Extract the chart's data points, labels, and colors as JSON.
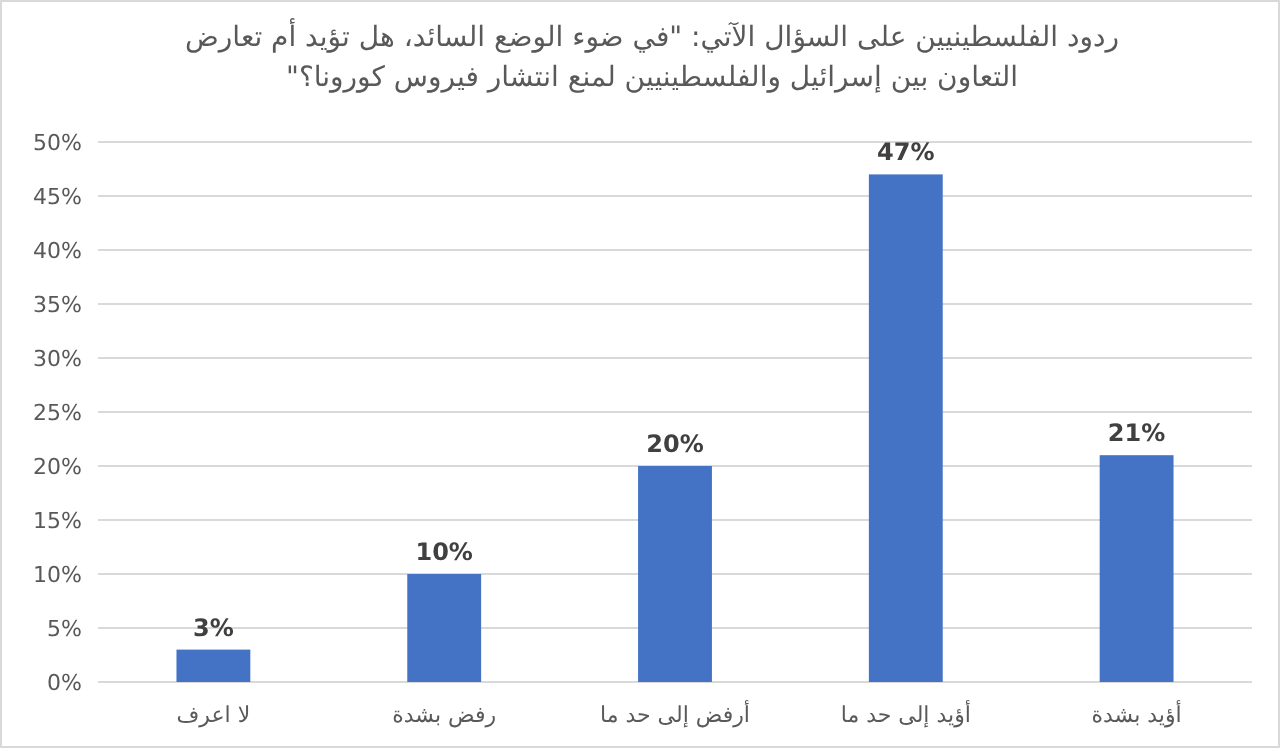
{
  "chart_data": {
    "type": "bar",
    "title": "ردود الفلسطينيين على السؤال الآتي: \"في ضوء الوضع السائد، هل تؤيد أم تعارض التعاون بين إسرائيل والفلسطينيين لمنع انتشار فيروس كورونا؟\"",
    "categories": [
      "لا اعرف",
      "رفض بشدة",
      "أرفض إلى حد ما",
      "أؤيد إلى حد ما",
      "أؤيد بشدة"
    ],
    "values": [
      3,
      10,
      20,
      47,
      21
    ],
    "color": "#4472c4",
    "data_labels": true,
    "value_labels": [
      "3%",
      "10%",
      "20%",
      "47%",
      "21%"
    ],
    "ylim": [
      0,
      50
    ],
    "yticks": [
      {
        "value": 0,
        "label": "0%"
      },
      {
        "value": 5,
        "label": "5%"
      },
      {
        "value": 10,
        "label": "10%"
      },
      {
        "value": 15,
        "label": "15%"
      },
      {
        "value": 20,
        "label": "20%"
      },
      {
        "value": 25,
        "label": "25%"
      },
      {
        "value": 30,
        "label": "30%"
      },
      {
        "value": 35,
        "label": "35%"
      },
      {
        "value": 40,
        "label": "40%"
      },
      {
        "value": 45,
        "label": "45%"
      },
      {
        "value": 50,
        "label": "50%"
      }
    ],
    "grid": "y"
  }
}
